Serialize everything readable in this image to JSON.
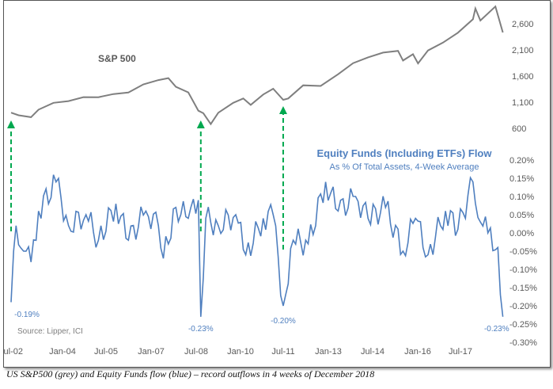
{
  "chart_data": {
    "type": "line",
    "top_panel": {
      "series_name": "S&P 500",
      "color": "#7f7f7f",
      "y_ticks": [
        "2,600",
        "2,100",
        "1,600",
        "1,100",
        "600"
      ],
      "points": [
        [
          "2002-07",
          900
        ],
        [
          "2002-10",
          860
        ],
        [
          "2003-03",
          830
        ],
        [
          "2003-06",
          980
        ],
        [
          "2003-12",
          1110
        ],
        [
          "2004-06",
          1140
        ],
        [
          "2004-12",
          1210
        ],
        [
          "2005-06",
          1200
        ],
        [
          "2005-12",
          1250
        ],
        [
          "2006-06",
          1270
        ],
        [
          "2006-12",
          1420
        ],
        [
          "2007-06",
          1500
        ],
        [
          "2007-10",
          1540
        ],
        [
          "2008-01",
          1380
        ],
        [
          "2008-06",
          1280
        ],
        [
          "2008-10",
          940
        ],
        [
          "2008-12",
          900
        ],
        [
          "2009-03",
          700
        ],
        [
          "2009-06",
          920
        ],
        [
          "2009-12",
          1110
        ],
        [
          "2010-04",
          1190
        ],
        [
          "2010-07",
          1060
        ],
        [
          "2010-12",
          1250
        ],
        [
          "2011-04",
          1350
        ],
        [
          "2011-08",
          1130
        ],
        [
          "2011-10",
          1150
        ],
        [
          "2012-04",
          1400
        ],
        [
          "2012-11",
          1390
        ],
        [
          "2013-06",
          1620
        ],
        [
          "2013-12",
          1840
        ],
        [
          "2014-06",
          1960
        ],
        [
          "2014-12",
          2060
        ],
        [
          "2015-06",
          2100
        ],
        [
          "2015-08",
          1920
        ],
        [
          "2015-12",
          2040
        ],
        [
          "2016-02",
          1860
        ],
        [
          "2016-06",
          2100
        ],
        [
          "2016-12",
          2240
        ],
        [
          "2017-06",
          2420
        ],
        [
          "2017-12",
          2670
        ],
        [
          "2018-01",
          2870
        ],
        [
          "2018-03",
          2640
        ],
        [
          "2018-09",
          2910
        ],
        [
          "2018-12",
          2420
        ]
      ]
    },
    "bottom_panel": {
      "title": "Equity Funds (Including ETFs) Flow",
      "subtitle": "As % Of Total Assets, 4-Week Average",
      "color": "#4f7fbf",
      "y_ticks": [
        "0.20%",
        "0.15%",
        "0.10%",
        "0.05%",
        "0.00%",
        "-0.05%",
        "-0.10%",
        "-0.15%",
        "-0.20%",
        "-0.25%",
        "-0.30%"
      ],
      "ylim": [
        -0.3,
        0.2
      ],
      "points": [
        [
          "2002-07",
          -0.19
        ],
        [
          "2002-09",
          0.02
        ],
        [
          "2002-12",
          -0.05
        ],
        [
          "2003-03",
          -0.08
        ],
        [
          "2003-06",
          0.06
        ],
        [
          "2004-01",
          0.14
        ],
        [
          "2004-06",
          0.02
        ],
        [
          "2005-01",
          0.05
        ],
        [
          "2005-06",
          -0.02
        ],
        [
          "2006-01",
          0.08
        ],
        [
          "2006-06",
          -0.02
        ],
        [
          "2007-01",
          0.06
        ],
        [
          "2007-06",
          0.02
        ],
        [
          "2007-08",
          -0.07
        ],
        [
          "2008-01",
          0.07
        ],
        [
          "2008-06",
          0.04
        ],
        [
          "2008-10",
          0.09
        ],
        [
          "2008-11",
          -0.23
        ],
        [
          "2009-01",
          0.04
        ],
        [
          "2009-06",
          0.02
        ],
        [
          "2010-01",
          0.05
        ],
        [
          "2010-05",
          -0.06
        ],
        [
          "2010-12",
          0.04
        ],
        [
          "2011-04",
          0.05
        ],
        [
          "2011-08",
          -0.2
        ],
        [
          "2011-12",
          -0.02
        ],
        [
          "2012-06",
          -0.03
        ],
        [
          "2013-01",
          0.14
        ],
        [
          "2013-06",
          0.06
        ],
        [
          "2014-01",
          0.1
        ],
        [
          "2014-06",
          0.04
        ],
        [
          "2015-01",
          0.07
        ],
        [
          "2015-08",
          -0.05
        ],
        [
          "2016-01",
          0.04
        ],
        [
          "2016-06",
          -0.06
        ],
        [
          "2017-01",
          0.06
        ],
        [
          "2017-06",
          0.01
        ],
        [
          "2017-12",
          0.14
        ],
        [
          "2018-03",
          0.03
        ],
        [
          "2018-06",
          0.0
        ],
        [
          "2018-10",
          -0.04
        ],
        [
          "2018-12",
          -0.23
        ]
      ]
    },
    "x_ticks": [
      "Jul-02",
      "Jan-04",
      "Jul-05",
      "Jan-07",
      "Jul-08",
      "Jan-10",
      "Jul-11",
      "Jan-13",
      "Jul-14",
      "Jan-16",
      "Jul-17"
    ],
    "annotations": [
      {
        "label": "-0.19%",
        "date": "2002-07"
      },
      {
        "label": "-0.23%",
        "date": "2008-11"
      },
      {
        "label": "-0.20%",
        "date": "2011-08"
      },
      {
        "label": "-0.23%",
        "date": "2018-12"
      }
    ],
    "arrow_color": "#00a84f",
    "source": "Source: Lipper, ICI"
  },
  "caption": "US S&P500 (grey) and Equity Funds flow (blue) – record outflows in 4 weeks of December 2018"
}
